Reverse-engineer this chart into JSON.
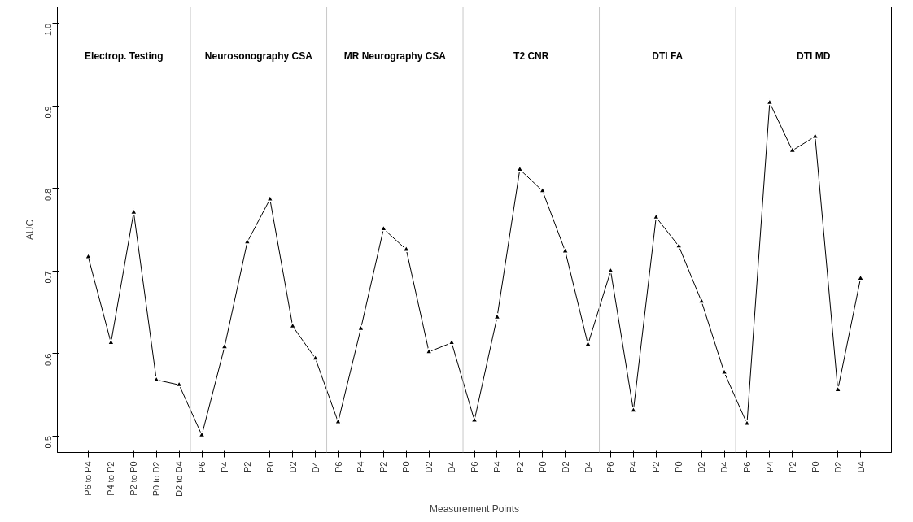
{
  "chart_data": {
    "type": "line",
    "xlabel": "Measurement Points",
    "ylabel": "AUC",
    "categories": [
      "P6 to P4",
      "P4 to P2",
      "P2 to P0",
      "P0 to D2",
      "D2 to D4",
      "P6",
      "P4",
      "P2",
      "P0",
      "D2",
      "D4",
      "P6",
      "P4",
      "P2",
      "P0",
      "D2",
      "D4",
      "P6",
      "P4",
      "P2",
      "P0",
      "D2",
      "D4",
      "P6",
      "P4",
      "P2",
      "P0",
      "D2",
      "D4",
      "P6",
      "P4",
      "P2",
      "P0",
      "D2",
      "D4"
    ],
    "series": [
      {
        "color": "#000000",
        "values": [
          0.717,
          0.613,
          0.771,
          0.568,
          0.562,
          0.501,
          0.608,
          0.735,
          0.787,
          0.633,
          0.594,
          0.517,
          0.63,
          0.751,
          0.726,
          0.602,
          0.613,
          0.519,
          0.644,
          0.823,
          0.797,
          0.724,
          0.611,
          0.7,
          0.531,
          0.765,
          0.73,
          0.663,
          0.577,
          0.515,
          0.904,
          0.846,
          0.863,
          0.556,
          0.691
        ]
      }
    ],
    "ylim": [
      0.48,
      1.02
    ],
    "yticks": [
      0.5,
      0.6,
      0.7,
      0.8,
      0.9,
      {
        "value": 1.0,
        "label": "1.0"
      }
    ],
    "annotations": [
      "Electrop. Testing",
      "Neurosonography CSA",
      "MR Neurography CSA",
      "T2 CNR",
      "DTI FA",
      "DTI MD"
    ],
    "grid": false,
    "marker": "triangle",
    "line_style": "solid"
  }
}
